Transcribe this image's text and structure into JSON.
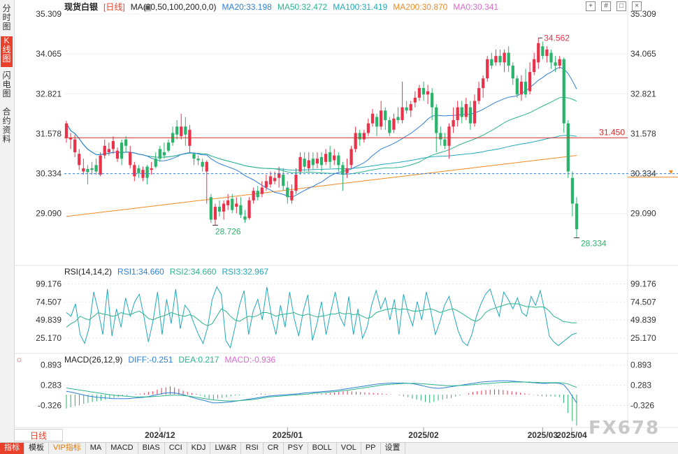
{
  "side_tabs": [
    "分时图",
    "K线图",
    "闪电图",
    "合约资料"
  ],
  "active_side_tab": 1,
  "main_legend": {
    "title": "现货白银",
    "period": "[日线]",
    "ma_label": "MA(20,50,100,200,0,0)",
    "ma20": "MA20:33.198",
    "ma50": "MA50:32.472",
    "ma100": "MA100:31.419",
    "ma200": "MA200:30.870",
    "ma0": "MA0:30.341"
  },
  "rsi_legend": {
    "label": "RSI(14,14,2)",
    "rsi1": "RSI1:34.660",
    "rsi2": "RSI2:34.660",
    "rsi3": "RSI3:32.967"
  },
  "macd_legend": {
    "label": "MACD(26,12,9)",
    "diff": "DIFF:-0.251",
    "dea": "DEA:0.217",
    "macd": "MACD:-0.936"
  },
  "range_selector": "日线",
  "watermark": "FX678",
  "bottom_bar": [
    "指标",
    "模板",
    "VIP指标",
    "MA",
    "MACD",
    "BIAS",
    "CCI",
    "KDJ",
    "LW&R",
    "RSI",
    "CR",
    "PSY",
    "BOLL",
    "VOL",
    "PP",
    "设置"
  ],
  "colors": {
    "up": "#e8334a",
    "down": "#2bb36b",
    "ma20": "#2f7fd6",
    "ma50": "#2bb38c",
    "ma100": "#22a9b8",
    "ma200": "#f08a24",
    "ma0": "#d96bd0",
    "hline": "#d62b2b"
  },
  "chart_data": {
    "type": "candlestick",
    "x_ticks": [
      "2024/12",
      "2025/01",
      "2025/02",
      "2025/03",
      "2025/04"
    ],
    "price_axis": [
      "35.309",
      "34.065",
      "32.821",
      "31.578",
      "30.334",
      "29.090"
    ],
    "price_range": [
      27.8,
      35.309
    ],
    "hline_value": "31.450",
    "current_price_label": "30.334",
    "high_label": "34.562",
    "low_label_left": "28.726",
    "low_label_right": "28.334",
    "candles": [
      [
        31.45,
        31.9,
        31.98,
        31.3
      ],
      [
        31.4,
        31.45,
        31.6,
        31.1
      ],
      [
        31.0,
        31.4,
        31.55,
        30.85
      ],
      [
        30.6,
        30.95,
        31.1,
        30.45
      ],
      [
        30.4,
        30.5,
        30.8,
        30.3
      ],
      [
        30.48,
        30.38,
        30.6,
        30.0
      ],
      [
        30.5,
        30.45,
        30.7,
        30.3
      ],
      [
        30.6,
        30.4,
        30.8,
        30.3
      ],
      [
        30.3,
        30.9,
        31.0,
        30.25
      ],
      [
        30.9,
        31.2,
        31.4,
        30.8
      ],
      [
        31.0,
        31.1,
        31.3,
        30.9
      ],
      [
        31.1,
        31.35,
        31.5,
        30.95
      ],
      [
        30.8,
        31.05,
        31.15,
        30.7
      ],
      [
        31.3,
        30.8,
        31.4,
        30.6
      ],
      [
        31.4,
        31.2,
        31.5,
        31.0
      ],
      [
        30.6,
        31.0,
        31.2,
        30.5
      ],
      [
        30.25,
        30.6,
        30.7,
        30.1
      ],
      [
        30.5,
        30.35,
        30.6,
        30.2
      ],
      [
        30.2,
        30.45,
        30.55,
        30.1
      ],
      [
        30.55,
        30.2,
        30.6,
        30.0
      ],
      [
        30.45,
        30.5,
        30.7,
        30.3
      ],
      [
        30.8,
        30.55,
        31.0,
        30.5
      ],
      [
        31.1,
        30.8,
        31.2,
        30.7
      ],
      [
        31.0,
        30.9,
        31.3,
        30.8
      ],
      [
        31.3,
        31.05,
        31.4,
        31.0
      ],
      [
        31.6,
        31.3,
        31.8,
        31.2
      ],
      [
        31.8,
        31.55,
        32.0,
        31.4
      ],
      [
        31.5,
        31.8,
        32.2,
        31.4
      ],
      [
        31.8,
        31.55,
        32.1,
        31.2
      ],
      [
        31.2,
        31.7,
        31.85,
        31.0
      ],
      [
        30.95,
        30.8,
        31.0,
        30.6
      ],
      [
        30.8,
        30.75,
        30.9,
        30.6
      ],
      [
        30.7,
        30.55,
        30.8,
        30.4
      ],
      [
        30.4,
        30.7,
        30.75,
        29.4
      ],
      [
        29.6,
        28.9,
        29.7,
        28.8
      ],
      [
        28.9,
        29.3,
        29.4,
        28.726
      ],
      [
        29.3,
        29.15,
        29.5,
        29.0
      ],
      [
        29.15,
        29.4,
        29.5,
        28.9
      ],
      [
        29.35,
        29.5,
        29.7,
        29.2
      ],
      [
        29.55,
        29.2,
        29.7,
        29.1
      ],
      [
        29.3,
        29.4,
        29.6,
        29.1
      ],
      [
        29.35,
        29.05,
        29.6,
        28.95
      ],
      [
        29.0,
        28.9,
        29.2,
        28.8
      ],
      [
        28.95,
        29.5,
        29.6,
        28.9
      ],
      [
        29.5,
        29.8,
        29.9,
        29.4
      ],
      [
        29.8,
        29.6,
        29.95,
        29.5
      ],
      [
        29.7,
        29.9,
        30.1,
        29.6
      ],
      [
        29.9,
        30.1,
        30.3,
        29.8
      ],
      [
        30.0,
        30.25,
        30.4,
        29.9
      ],
      [
        30.1,
        30.2,
        30.4,
        30.0
      ],
      [
        30.2,
        30.35,
        30.55,
        29.9
      ],
      [
        30.3,
        29.95,
        30.5,
        29.8
      ],
      [
        29.9,
        29.6,
        30.1,
        29.4
      ],
      [
        29.5,
        29.8,
        30.0,
        29.4
      ],
      [
        29.8,
        30.3,
        30.5,
        29.7
      ],
      [
        30.4,
        30.85,
        31.0,
        30.3
      ],
      [
        30.8,
        30.55,
        31.0,
        30.4
      ],
      [
        30.5,
        30.75,
        31.0,
        30.4
      ],
      [
        30.8,
        30.6,
        31.0,
        30.45
      ],
      [
        30.65,
        30.8,
        31.0,
        30.5
      ],
      [
        30.85,
        30.6,
        31.0,
        30.4
      ],
      [
        30.7,
        30.95,
        31.1,
        30.6
      ],
      [
        31.0,
        30.7,
        31.2,
        30.5
      ],
      [
        30.75,
        30.9,
        31.1,
        30.6
      ],
      [
        30.9,
        30.6,
        31.0,
        30.4
      ],
      [
        30.6,
        30.3,
        30.7,
        29.8
      ],
      [
        30.35,
        30.5,
        30.8,
        30.2
      ],
      [
        30.6,
        31.1,
        31.2,
        30.5
      ],
      [
        31.1,
        31.6,
        31.8,
        31.0
      ],
      [
        31.6,
        31.4,
        31.7,
        31.2
      ],
      [
        31.4,
        31.6,
        31.7,
        31.3
      ],
      [
        31.6,
        31.9,
        32.05,
        31.5
      ],
      [
        31.9,
        32.2,
        32.35,
        31.8
      ],
      [
        32.1,
        31.8,
        32.2,
        31.5
      ],
      [
        31.8,
        32.3,
        32.6,
        31.7
      ],
      [
        32.3,
        32.0,
        32.4,
        31.7
      ],
      [
        32.0,
        31.6,
        32.1,
        31.5
      ],
      [
        31.7,
        32.05,
        32.2,
        31.6
      ],
      [
        32.1,
        32.0,
        32.4,
        31.9
      ],
      [
        32.0,
        32.4,
        33.2,
        31.9
      ],
      [
        32.4,
        32.3,
        32.6,
        32.2
      ],
      [
        32.3,
        32.5,
        32.6,
        32.1
      ],
      [
        32.55,
        32.7,
        32.9,
        32.4
      ],
      [
        32.7,
        33.0,
        33.1,
        32.6
      ],
      [
        33.0,
        32.8,
        33.2,
        32.6
      ],
      [
        32.8,
        32.9,
        33.1,
        32.5
      ],
      [
        32.85,
        32.4,
        33.0,
        32.0
      ],
      [
        32.4,
        31.6,
        32.5,
        31.0
      ],
      [
        31.6,
        31.4,
        31.8,
        31.2
      ],
      [
        31.4,
        31.2,
        31.6,
        31.1
      ],
      [
        31.2,
        31.8,
        31.9,
        30.8
      ],
      [
        31.8,
        32.0,
        32.4,
        31.6
      ],
      [
        32.0,
        32.4,
        32.6,
        31.8
      ],
      [
        32.4,
        32.1,
        32.6,
        31.9
      ],
      [
        32.1,
        32.5,
        32.7,
        32.0
      ],
      [
        32.4,
        31.9,
        32.6,
        31.7
      ],
      [
        31.9,
        32.6,
        32.8,
        31.8
      ],
      [
        32.6,
        33.0,
        33.2,
        32.5
      ],
      [
        33.0,
        33.3,
        33.4,
        32.7
      ],
      [
        33.3,
        33.9,
        34.0,
        33.2
      ],
      [
        33.9,
        33.7,
        34.1,
        33.6
      ],
      [
        33.8,
        34.0,
        34.2,
        33.7
      ],
      [
        34.0,
        33.8,
        34.2,
        33.7
      ],
      [
        33.8,
        34.1,
        34.2,
        33.5
      ],
      [
        34.1,
        33.7,
        34.3,
        33.5
      ],
      [
        33.7,
        33.3,
        33.8,
        33.1
      ],
      [
        33.3,
        32.8,
        33.4,
        32.7
      ],
      [
        32.8,
        33.2,
        33.4,
        32.6
      ],
      [
        33.2,
        32.8,
        33.6,
        32.7
      ],
      [
        32.9,
        33.5,
        33.8,
        32.8
      ],
      [
        33.5,
        33.9,
        34.1,
        33.4
      ],
      [
        33.8,
        34.4,
        34.562,
        33.6
      ],
      [
        34.3,
        34.0,
        34.45,
        33.9
      ],
      [
        34.0,
        34.2,
        34.3,
        33.8
      ],
      [
        34.1,
        33.8,
        34.2,
        33.6
      ],
      [
        33.8,
        33.7,
        34.0,
        33.5
      ],
      [
        33.7,
        33.9,
        34.0,
        33.6
      ],
      [
        33.9,
        31.9,
        33.95,
        31.6
      ],
      [
        31.9,
        30.4,
        32.0,
        30.2
      ],
      [
        30.2,
        29.4,
        30.4,
        29.0
      ],
      [
        29.4,
        28.6,
        29.6,
        28.334
      ]
    ],
    "rsi_axis": [
      "99.176",
      "74.507",
      "49.839",
      "25.170"
    ],
    "rsi_range": [
      10,
      110
    ],
    "rsi_values": [
      [
        60,
        40
      ],
      [
        55,
        45
      ],
      [
        72,
        48
      ],
      [
        30,
        55
      ],
      [
        18,
        52
      ],
      [
        40,
        50
      ],
      [
        88,
        55
      ],
      [
        62,
        60
      ],
      [
        30,
        58
      ],
      [
        92,
        57
      ],
      [
        28,
        55
      ],
      [
        65,
        56
      ],
      [
        40,
        60
      ],
      [
        80,
        58
      ],
      [
        55,
        57
      ],
      [
        75,
        60
      ],
      [
        85,
        62
      ],
      [
        55,
        58
      ],
      [
        20,
        52
      ],
      [
        48,
        50
      ],
      [
        88,
        53
      ],
      [
        30,
        55
      ],
      [
        78,
        57
      ],
      [
        45,
        60
      ],
      [
        92,
        58
      ],
      [
        38,
        56
      ],
      [
        70,
        55
      ],
      [
        62,
        57
      ],
      [
        45,
        55
      ],
      [
        30,
        50
      ],
      [
        18,
        45
      ],
      [
        40,
        42
      ],
      [
        78,
        45
      ],
      [
        95,
        55
      ],
      [
        85,
        65
      ],
      [
        22,
        62
      ],
      [
        12,
        55
      ],
      [
        40,
        50
      ],
      [
        70,
        48
      ],
      [
        90,
        52
      ],
      [
        30,
        55
      ],
      [
        62,
        54
      ],
      [
        78,
        56
      ],
      [
        50,
        60
      ],
      [
        95,
        60
      ],
      [
        55,
        58
      ],
      [
        30,
        55
      ],
      [
        70,
        57
      ],
      [
        40,
        58
      ],
      [
        88,
        59
      ],
      [
        52,
        60
      ],
      [
        28,
        57
      ],
      [
        62,
        56
      ],
      [
        84,
        58
      ],
      [
        22,
        56
      ],
      [
        45,
        54
      ],
      [
        75,
        55
      ],
      [
        30,
        56
      ],
      [
        60,
        58
      ],
      [
        88,
        58
      ],
      [
        55,
        60
      ],
      [
        42,
        58
      ],
      [
        82,
        59
      ],
      [
        30,
        57
      ],
      [
        65,
        58
      ],
      [
        25,
        55
      ],
      [
        40,
        52
      ],
      [
        70,
        54
      ],
      [
        90,
        60
      ],
      [
        65,
        62
      ],
      [
        80,
        64
      ],
      [
        50,
        65
      ],
      [
        78,
        66
      ],
      [
        30,
        64
      ],
      [
        85,
        65
      ],
      [
        60,
        64
      ],
      [
        42,
        62
      ],
      [
        75,
        62
      ],
      [
        50,
        63
      ],
      [
        88,
        64
      ],
      [
        62,
        65
      ],
      [
        30,
        63
      ],
      [
        48,
        60
      ],
      [
        70,
        62
      ],
      [
        82,
        64
      ],
      [
        58,
        65
      ],
      [
        35,
        62
      ],
      [
        20,
        58
      ],
      [
        15,
        54
      ],
      [
        30,
        50
      ],
      [
        55,
        48
      ],
      [
        72,
        52
      ],
      [
        85,
        60
      ],
      [
        92,
        64
      ],
      [
        72,
        66
      ],
      [
        55,
        68
      ],
      [
        88,
        70
      ],
      [
        78,
        72
      ],
      [
        65,
        72
      ],
      [
        80,
        72
      ],
      [
        60,
        70
      ],
      [
        55,
        68
      ],
      [
        82,
        68
      ],
      [
        70,
        67
      ],
      [
        90,
        68
      ],
      [
        62,
        67
      ],
      [
        28,
        62
      ],
      [
        20,
        55
      ],
      [
        15,
        52
      ],
      [
        20,
        48
      ],
      [
        25,
        47
      ],
      [
        30,
        46
      ],
      [
        32,
        46
      ]
    ],
    "macd_axis": [
      "0.893",
      "0.283",
      "-0.326"
    ],
    "macd_range": [
      -0.95,
      0.95
    ],
    "macd_bars": [
      -0.42,
      -0.38,
      -0.35,
      -0.32,
      -0.28,
      -0.25,
      -0.22,
      -0.2,
      -0.18,
      -0.15,
      -0.12,
      -0.1,
      -0.08,
      -0.05,
      -0.03,
      0.0,
      0.02,
      0.03,
      0.05,
      0.08,
      0.1,
      0.15,
      0.2,
      0.22,
      0.25,
      0.22,
      0.18,
      0.12,
      0.08,
      0.05,
      0.02,
      -0.03,
      -0.08,
      -0.12,
      -0.15,
      -0.12,
      -0.1,
      -0.08,
      -0.05,
      -0.03,
      -0.02,
      -0.01,
      0.0,
      0.01,
      0.02,
      0.03,
      0.02,
      0.01,
      0.0,
      0.0,
      -0.01,
      0.0,
      0.01,
      0.02,
      0.03,
      0.02,
      0.01,
      0.01,
      0.02,
      0.03,
      0.04,
      0.05,
      0.06,
      0.08,
      0.1,
      0.12,
      0.1,
      0.09,
      0.08,
      0.07,
      0.06,
      0.05,
      0.04,
      0.03,
      0.02,
      0.01,
      0.0,
      -0.02,
      -0.05,
      -0.08,
      -0.12,
      -0.15,
      -0.18,
      -0.22,
      -0.25,
      -0.22,
      -0.18,
      -0.15,
      -0.12,
      -0.1,
      -0.06,
      -0.03,
      0.0,
      0.04,
      0.08,
      0.1,
      0.12,
      0.14,
      0.15,
      0.16,
      0.15,
      0.14,
      0.12,
      0.1,
      0.08,
      0.06,
      0.04,
      0.02,
      -0.01,
      -0.03,
      -0.05,
      -0.06,
      -0.05,
      -0.06,
      -0.08,
      -0.25,
      -0.55,
      -0.8,
      -0.936
    ],
    "macd_diff_line": [
      0.1,
      0.08,
      0.05,
      0.02,
      -0.01,
      -0.04,
      -0.06,
      -0.08,
      -0.09,
      -0.1,
      -0.11,
      -0.12,
      -0.12,
      -0.12,
      -0.12,
      -0.11,
      -0.1,
      -0.09,
      -0.08,
      -0.06,
      -0.03,
      0.0,
      0.03,
      0.05,
      0.06,
      0.05,
      0.03,
      0.0,
      -0.04,
      -0.08,
      -0.12,
      -0.15,
      -0.18,
      -0.22,
      -0.25,
      -0.25,
      -0.24,
      -0.23,
      -0.22,
      -0.2,
      -0.18,
      -0.16,
      -0.14,
      -0.12,
      -0.1,
      -0.08,
      -0.06,
      -0.04,
      -0.03,
      -0.02,
      -0.01,
      0.0,
      0.01,
      0.02,
      0.03,
      0.05,
      0.06,
      0.07,
      0.08,
      0.09,
      0.1,
      0.11,
      0.12,
      0.14,
      0.16,
      0.18,
      0.2,
      0.22,
      0.24,
      0.26,
      0.28,
      0.3,
      0.32,
      0.33,
      0.34,
      0.35,
      0.35,
      0.35,
      0.35,
      0.34,
      0.33,
      0.31,
      0.28,
      0.25,
      0.22,
      0.2,
      0.19,
      0.2,
      0.22,
      0.24,
      0.26,
      0.28,
      0.3,
      0.32,
      0.34,
      0.36,
      0.38,
      0.39,
      0.4,
      0.41,
      0.42,
      0.42,
      0.42,
      0.41,
      0.4,
      0.39,
      0.38,
      0.37,
      0.36,
      0.35,
      0.34,
      0.34,
      0.35,
      0.35,
      0.34,
      0.3,
      0.15,
      -0.05,
      -0.251
    ],
    "macd_dea_line": [
      0.2,
      0.18,
      0.16,
      0.14,
      0.12,
      0.1,
      0.08,
      0.06,
      0.04,
      0.02,
      0.0,
      -0.02,
      -0.03,
      -0.04,
      -0.05,
      -0.06,
      -0.07,
      -0.07,
      -0.07,
      -0.07,
      -0.06,
      -0.05,
      -0.04,
      -0.03,
      -0.02,
      -0.02,
      -0.02,
      -0.03,
      -0.04,
      -0.06,
      -0.08,
      -0.1,
      -0.12,
      -0.14,
      -0.16,
      -0.17,
      -0.18,
      -0.19,
      -0.19,
      -0.19,
      -0.18,
      -0.17,
      -0.16,
      -0.15,
      -0.13,
      -0.11,
      -0.09,
      -0.07,
      -0.06,
      -0.05,
      -0.04,
      -0.03,
      -0.02,
      -0.01,
      0.0,
      0.01,
      0.02,
      0.04,
      0.05,
      0.06,
      0.07,
      0.08,
      0.09,
      0.1,
      0.12,
      0.13,
      0.15,
      0.17,
      0.19,
      0.21,
      0.23,
      0.25,
      0.27,
      0.29,
      0.3,
      0.31,
      0.32,
      0.33,
      0.34,
      0.34,
      0.34,
      0.34,
      0.33,
      0.32,
      0.31,
      0.3,
      0.29,
      0.28,
      0.27,
      0.27,
      0.27,
      0.28,
      0.28,
      0.29,
      0.3,
      0.31,
      0.32,
      0.33,
      0.34,
      0.35,
      0.36,
      0.37,
      0.37,
      0.38,
      0.38,
      0.38,
      0.38,
      0.38,
      0.37,
      0.37,
      0.36,
      0.36,
      0.36,
      0.36,
      0.36,
      0.35,
      0.32,
      0.27,
      0.217
    ]
  }
}
